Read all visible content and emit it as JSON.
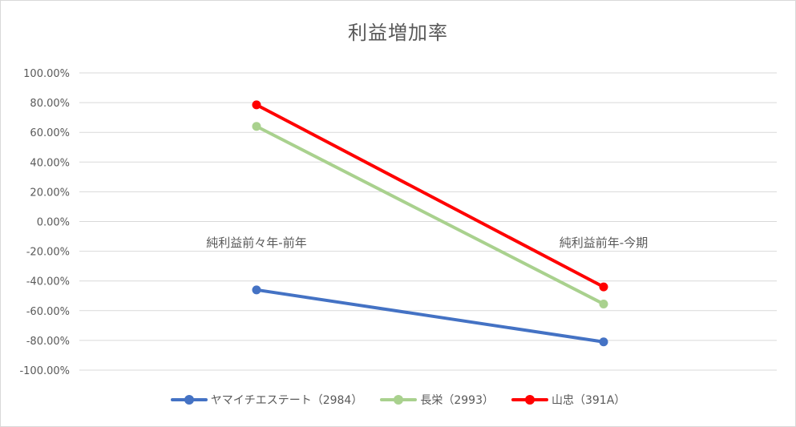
{
  "chart_data": {
    "type": "line",
    "title": "利益増加率",
    "categories": [
      "純利益前々年-前年",
      "純利益前年-今期"
    ],
    "y_ticks": [
      "100.00%",
      "80.00%",
      "60.00%",
      "40.00%",
      "20.00%",
      "0.00%",
      "-20.00%",
      "-40.00%",
      "-60.00%",
      "-80.00%",
      "-100.00%"
    ],
    "ylim": [
      -1.0,
      1.0
    ],
    "grid": true,
    "legend_position": "bottom",
    "series": [
      {
        "name": "ヤマイチエステート（2984）",
        "color": "#4472c4",
        "values": [
          -0.46,
          -0.81
        ]
      },
      {
        "name": "長栄（2993）",
        "color": "#a9d18e",
        "values": [
          0.64,
          -0.555
        ]
      },
      {
        "name": "山忠（391A）",
        "color": "#ff0000",
        "values": [
          0.785,
          -0.44
        ]
      }
    ]
  }
}
